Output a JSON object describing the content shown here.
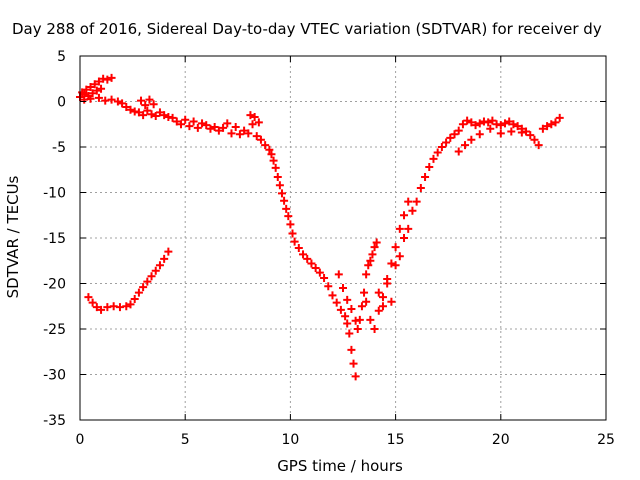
{
  "chart_data": {
    "type": "scatter",
    "title": "Day 288 of 2016, Sidereal Day-to-day VTEC variation (SDTVAR) for receiver dy",
    "xlabel": "GPS time / hours",
    "ylabel": "SDTVAR / TECUs",
    "xlim": [
      0,
      25
    ],
    "ylim": [
      -35,
      5
    ],
    "xticks": [
      0,
      5,
      10,
      15,
      20,
      25
    ],
    "yticks": [
      -35,
      -30,
      -25,
      -20,
      -15,
      -10,
      -5,
      0,
      5
    ],
    "grid": true,
    "legend": "none",
    "marker": "plus",
    "series": [
      {
        "color": "#ff0000",
        "points": [
          [
            0.0,
            0.5
          ],
          [
            0.1,
            1.0
          ],
          [
            0.2,
            0.8
          ],
          [
            0.3,
            1.3
          ],
          [
            0.4,
            0.6
          ],
          [
            0.5,
            1.6
          ],
          [
            0.6,
            0.9
          ],
          [
            0.7,
            1.9
          ],
          [
            0.8,
            1.2
          ],
          [
            0.9,
            2.2
          ],
          [
            1.0,
            1.4
          ],
          [
            1.1,
            2.5
          ],
          [
            1.3,
            2.4
          ],
          [
            1.5,
            2.6
          ],
          [
            0.2,
            0.2
          ],
          [
            0.5,
            0.3
          ],
          [
            0.9,
            0.4
          ],
          [
            1.2,
            0.1
          ],
          [
            1.5,
            0.2
          ],
          [
            1.8,
            0.0
          ],
          [
            2.0,
            -0.2
          ],
          [
            2.2,
            -0.6
          ],
          [
            2.4,
            -0.9
          ],
          [
            2.6,
            -1.1
          ],
          [
            2.8,
            -1.2
          ],
          [
            3.0,
            -1.5
          ],
          [
            3.2,
            -1.0
          ],
          [
            3.4,
            -1.4
          ],
          [
            3.6,
            -1.6
          ],
          [
            3.8,
            -1.2
          ],
          [
            4.0,
            -1.5
          ],
          [
            4.2,
            -1.7
          ],
          [
            2.9,
            0.1
          ],
          [
            3.1,
            -0.4
          ],
          [
            3.3,
            0.2
          ],
          [
            3.5,
            -0.3
          ],
          [
            4.4,
            -1.8
          ],
          [
            4.6,
            -2.2
          ],
          [
            4.8,
            -2.5
          ],
          [
            5.0,
            -2.0
          ],
          [
            5.2,
            -2.7
          ],
          [
            5.4,
            -2.2
          ],
          [
            5.6,
            -2.9
          ],
          [
            5.8,
            -2.4
          ],
          [
            6.0,
            -2.6
          ],
          [
            6.2,
            -3.0
          ],
          [
            6.4,
            -2.8
          ],
          [
            6.6,
            -3.2
          ],
          [
            6.8,
            -2.9
          ],
          [
            7.0,
            -2.4
          ],
          [
            7.2,
            -3.5
          ],
          [
            7.4,
            -2.8
          ],
          [
            7.6,
            -3.6
          ],
          [
            7.8,
            -3.2
          ],
          [
            8.0,
            -3.5
          ],
          [
            8.1,
            -1.5
          ],
          [
            8.2,
            -2.5
          ],
          [
            8.3,
            -1.7
          ],
          [
            8.4,
            -3.8
          ],
          [
            8.5,
            -2.3
          ],
          [
            8.6,
            -4.2
          ],
          [
            8.8,
            -4.8
          ],
          [
            9.0,
            -5.3
          ],
          [
            9.1,
            -5.8
          ],
          [
            9.2,
            -6.5
          ],
          [
            9.3,
            -7.3
          ],
          [
            9.4,
            -8.3
          ],
          [
            9.5,
            -9.2
          ],
          [
            9.6,
            -10.1
          ],
          [
            9.7,
            -10.9
          ],
          [
            9.8,
            -11.8
          ],
          [
            9.9,
            -12.6
          ],
          [
            10.0,
            -13.5
          ],
          [
            10.1,
            -14.5
          ],
          [
            10.2,
            -15.4
          ],
          [
            10.4,
            -16.1
          ],
          [
            10.6,
            -16.8
          ],
          [
            10.8,
            -17.3
          ],
          [
            11.0,
            -17.8
          ],
          [
            11.2,
            -18.3
          ],
          [
            11.4,
            -18.8
          ],
          [
            11.6,
            -19.4
          ],
          [
            11.8,
            -20.3
          ],
          [
            12.0,
            -21.3
          ],
          [
            12.2,
            -22.1
          ],
          [
            12.4,
            -22.9
          ],
          [
            12.6,
            -23.6
          ],
          [
            12.7,
            -24.4
          ],
          [
            12.8,
            -25.5
          ],
          [
            12.9,
            -27.3
          ],
          [
            13.0,
            -28.8
          ],
          [
            13.1,
            -30.2
          ],
          [
            12.3,
            -19.0
          ],
          [
            12.5,
            -20.5
          ],
          [
            12.7,
            -21.8
          ],
          [
            12.9,
            -22.8
          ],
          [
            13.1,
            -24.1
          ],
          [
            13.2,
            -25.0
          ],
          [
            13.3,
            -24.0
          ],
          [
            13.4,
            -22.5
          ],
          [
            13.5,
            -21.0
          ],
          [
            13.6,
            -19.0
          ],
          [
            13.7,
            -18.0
          ],
          [
            13.8,
            -17.5
          ],
          [
            13.9,
            -16.8
          ],
          [
            14.0,
            -16.0
          ],
          [
            14.1,
            -15.5
          ],
          [
            13.6,
            -22.0
          ],
          [
            13.8,
            -24.0
          ],
          [
            14.0,
            -25.0
          ],
          [
            14.2,
            -23.0
          ],
          [
            14.4,
            -21.5
          ],
          [
            14.6,
            -19.5
          ],
          [
            14.8,
            -17.8
          ],
          [
            15.0,
            -16.0
          ],
          [
            15.2,
            -14.0
          ],
          [
            15.4,
            -12.5
          ],
          [
            15.6,
            -11.0
          ],
          [
            14.2,
            -21.0
          ],
          [
            14.4,
            -22.5
          ],
          [
            14.6,
            -20.0
          ],
          [
            14.8,
            -22.0
          ],
          [
            15.0,
            -18.0
          ],
          [
            15.2,
            -17.0
          ],
          [
            15.4,
            -15.0
          ],
          [
            15.6,
            -14.0
          ],
          [
            15.8,
            -12.0
          ],
          [
            16.0,
            -11.0
          ],
          [
            16.2,
            -9.5
          ],
          [
            16.4,
            -8.3
          ],
          [
            16.6,
            -7.2
          ],
          [
            16.8,
            -6.3
          ],
          [
            17.0,
            -5.6
          ],
          [
            17.2,
            -5.0
          ],
          [
            17.4,
            -4.5
          ],
          [
            17.6,
            -4.0
          ],
          [
            17.8,
            -3.6
          ],
          [
            18.0,
            -3.2
          ],
          [
            18.2,
            -2.5
          ],
          [
            18.4,
            -2.1
          ],
          [
            18.6,
            -2.3
          ],
          [
            18.8,
            -2.6
          ],
          [
            19.0,
            -2.4
          ],
          [
            19.2,
            -2.2
          ],
          [
            19.4,
            -2.3
          ],
          [
            19.6,
            -2.1
          ],
          [
            19.8,
            -2.5
          ],
          [
            20.0,
            -2.6
          ],
          [
            20.2,
            -2.4
          ],
          [
            20.4,
            -2.2
          ],
          [
            20.6,
            -2.5
          ],
          [
            20.8,
            -2.7
          ],
          [
            21.0,
            -3.0
          ],
          [
            21.2,
            -3.3
          ],
          [
            21.4,
            -3.7
          ],
          [
            21.6,
            -4.2
          ],
          [
            21.8,
            -4.8
          ],
          [
            22.0,
            -3.0
          ],
          [
            22.2,
            -2.7
          ],
          [
            22.4,
            -2.5
          ],
          [
            22.6,
            -2.3
          ],
          [
            22.8,
            -1.8
          ],
          [
            18.0,
            -5.5
          ],
          [
            18.3,
            -4.8
          ],
          [
            18.6,
            -4.2
          ],
          [
            19.0,
            -3.6
          ],
          [
            19.5,
            -3.0
          ],
          [
            20.0,
            -3.5
          ],
          [
            20.5,
            -3.3
          ],
          [
            21.0,
            -3.4
          ],
          [
            0.4,
            -21.5
          ],
          [
            0.6,
            -22.1
          ],
          [
            0.8,
            -22.6
          ],
          [
            1.0,
            -22.9
          ],
          [
            1.3,
            -22.6
          ],
          [
            1.6,
            -22.5
          ],
          [
            1.9,
            -22.6
          ],
          [
            2.2,
            -22.5
          ],
          [
            2.4,
            -22.3
          ],
          [
            2.6,
            -21.7
          ],
          [
            2.8,
            -21.0
          ],
          [
            3.0,
            -20.4
          ],
          [
            3.2,
            -19.8
          ],
          [
            3.4,
            -19.2
          ],
          [
            3.6,
            -18.6
          ],
          [
            3.8,
            -18.0
          ],
          [
            4.0,
            -17.3
          ],
          [
            4.2,
            -16.5
          ]
        ]
      }
    ]
  }
}
